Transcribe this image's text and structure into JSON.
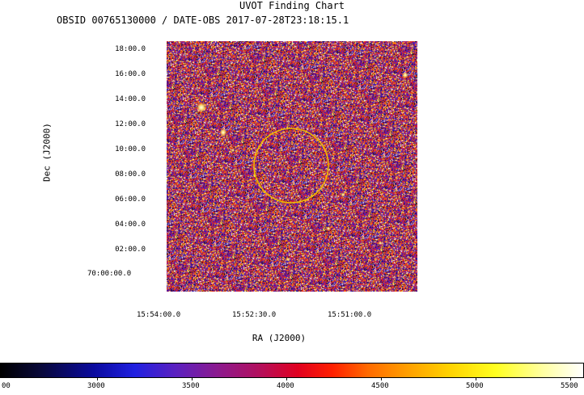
{
  "header": {
    "title": "UVOT Finding Chart",
    "subtitle": "OBSID 00765130000 / DATE-OBS 2017-07-28T23:18:15.1"
  },
  "axes": {
    "xlabel": "RA (J2000)",
    "ylabel": "Dec (J2000)",
    "ra_ticks": [
      "15:54:00.0",
      "15:52:30.0",
      "15:51:00.0"
    ],
    "dec_ticks": [
      "18:00.0",
      "16:00.0",
      "14:00.0",
      "12:00.0",
      "10:00.0",
      "08:00.0",
      "06:00.0",
      "04:00.0",
      "02:00.0",
      "70:00:00.0"
    ]
  },
  "colorbar": {
    "labels": [
      "00",
      "3000",
      "3500",
      "4000",
      "4500",
      "5000",
      "5500"
    ]
  },
  "colors": {
    "circle": "#f0b800",
    "background": "#ffffff"
  }
}
